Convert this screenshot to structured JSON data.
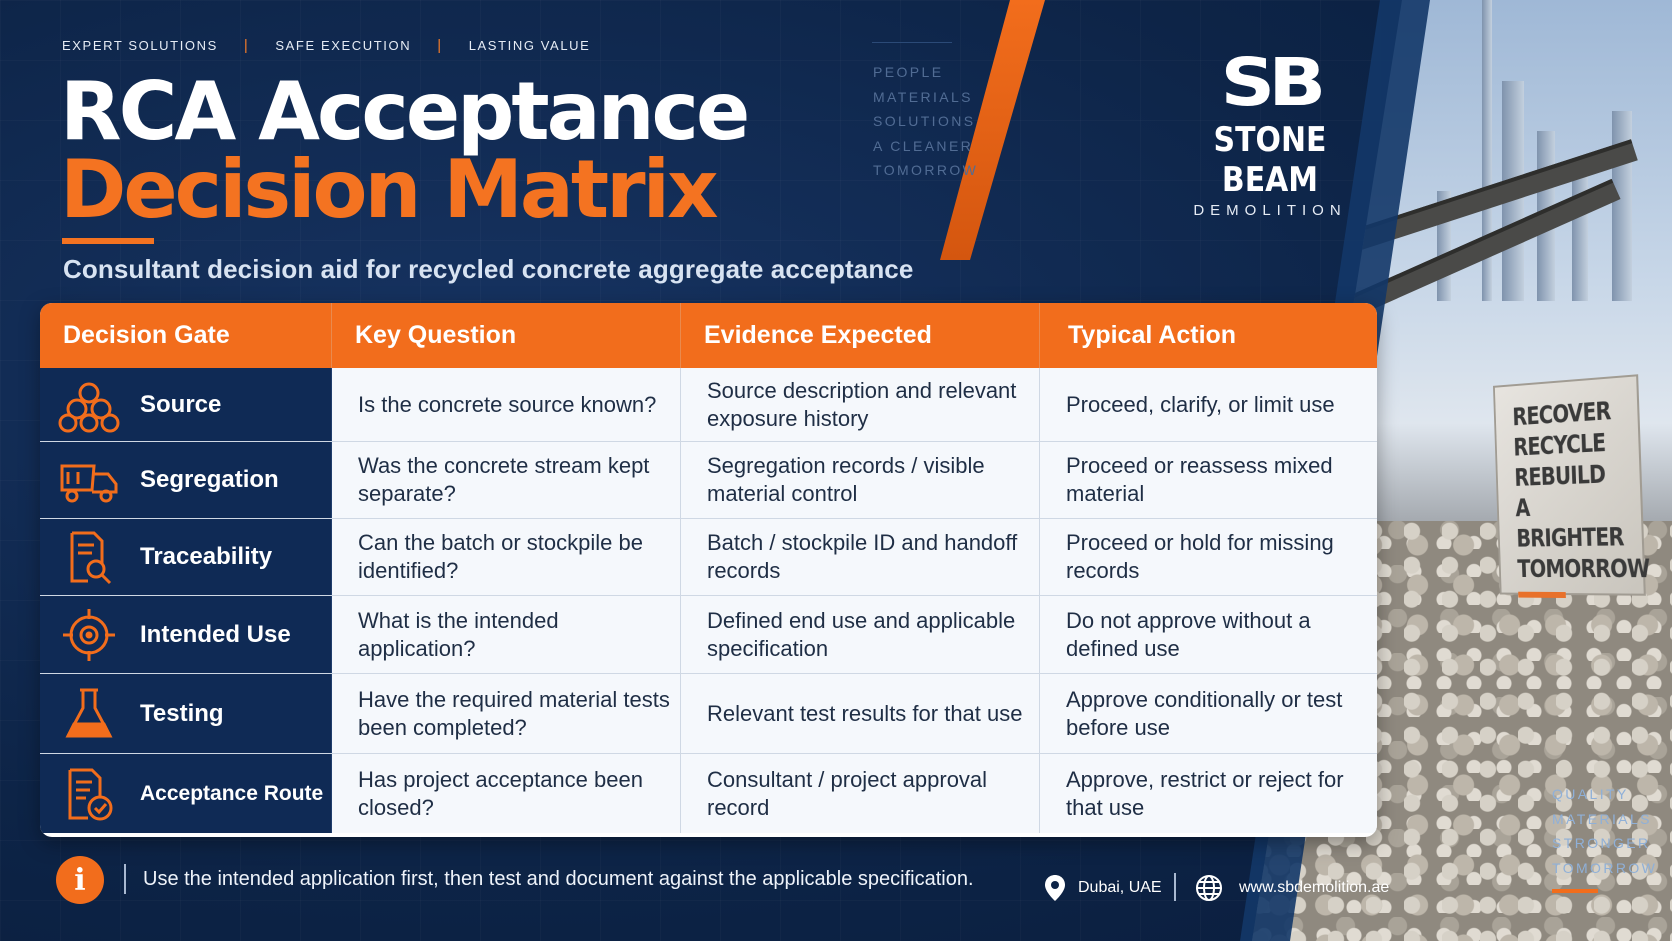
{
  "tagline": [
    "EXPERT SOLUTIONS",
    "SAFE EXECUTION",
    "LASTING VALUE"
  ],
  "title_line1": "RCA Acceptance",
  "title_line2": "Decision Matrix",
  "subtitle": "Consultant decision aid for recycled concrete aggregate acceptance",
  "side_words": [
    "PEOPLE",
    "MATERIALS",
    "SOLUTIONS",
    "A CLEANER",
    "TOMORROW"
  ],
  "logo": {
    "mark": "SB",
    "name": "STONE BEAM",
    "sub": "DEMOLITION"
  },
  "sign_lines": [
    "RECOVER",
    "RECYCLE",
    "REBUILD",
    "A BRIGHTER",
    "TOMORROW"
  ],
  "table": {
    "headers": [
      "Decision Gate",
      "Key Question",
      "Evidence Expected",
      "Typical Action"
    ],
    "rows": [
      {
        "gate": "Source",
        "icon": "stone-pile-icon",
        "question": "Is the concrete source known?",
        "evidence": "Source description and relevant exposure history",
        "action": "Proceed, clarify, or limit use"
      },
      {
        "gate": "Segregation",
        "icon": "dump-truck-icon",
        "question": "Was the concrete stream kept separate?",
        "evidence": "Segregation records / visible material control",
        "action": "Proceed or reassess mixed material"
      },
      {
        "gate": "Traceability",
        "icon": "document-search-icon",
        "question": "Can the batch or stockpile be identified?",
        "evidence": "Batch / stockpile ID and handoff records",
        "action": "Proceed or hold for missing records"
      },
      {
        "gate": "Intended Use",
        "icon": "target-icon",
        "question": "What is the intended application?",
        "evidence": "Defined end use and applicable specification",
        "action": "Do not approve without a defined use"
      },
      {
        "gate": "Testing",
        "icon": "flask-icon",
        "question": "Have the required material tests been completed?",
        "evidence": "Relevant test results for that use",
        "action": "Approve conditionally or test before use"
      },
      {
        "gate": "Acceptance Route",
        "icon": "document-check-icon",
        "question": "Has project acceptance been closed?",
        "evidence": "Consultant / project approval record",
        "action": "Approve, restrict or reject for that use"
      }
    ]
  },
  "footer": {
    "note": "Use the intended application first, then test and document against the applicable specification.",
    "location": "Dubai, UAE",
    "website": "www.sbdemolition.ae"
  },
  "quality_words": [
    "QUALITY",
    "MATERIALS",
    "STRONGER",
    "TOMORROW"
  ],
  "colors": {
    "accent": "#f26d1c",
    "navy": "#0d2447",
    "gate_bg": "#0f2a55"
  }
}
